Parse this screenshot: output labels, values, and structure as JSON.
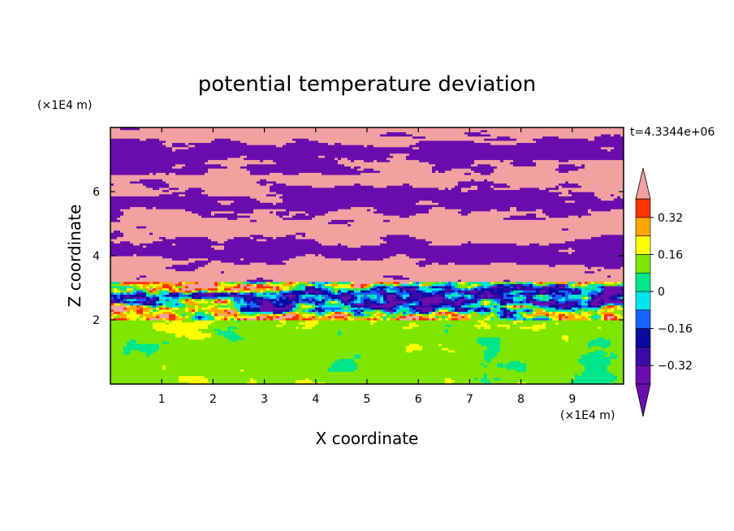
{
  "chart_data": {
    "type": "heatmap",
    "title": "potential temperature deviation",
    "xlabel": "X coordinate",
    "ylabel": "Z coordinate",
    "x_unit": "(×1E4 m)",
    "y_unit": "(×1E4 m)",
    "time_label": "t=4.3344e+06",
    "xlim": [
      0,
      10
    ],
    "ylim": [
      0,
      8
    ],
    "x_ticks": [
      1,
      2,
      3,
      4,
      5,
      6,
      7,
      8,
      9
    ],
    "y_ticks": [
      2,
      4,
      6
    ],
    "colorbar": {
      "levels": [
        -0.4,
        -0.32,
        -0.24,
        -0.16,
        -0.08,
        0,
        0.08,
        0.16,
        0.24,
        0.32,
        0.4
      ],
      "tick_values": [
        -0.32,
        -0.16,
        0,
        0.16,
        0.32
      ],
      "tick_labels": [
        "−0.32",
        "−0.16",
        "0",
        "0.16",
        "0.32"
      ],
      "colors": [
        "#6a0dad",
        "#3b0aa8",
        "#0a0aa0",
        "#1464ff",
        "#00e5ee",
        "#00e68a",
        "#7fe600",
        "#ffff00",
        "#ffa500",
        "#ff3300",
        "#f2a0a0"
      ],
      "extend": "both"
    },
    "regions": {
      "boundary_layer_top": 2.0,
      "mixing_layer_top": 3.2,
      "boundary_layer_dominant": "near 0 (green shades)",
      "upper_layer_dominant": "alternating -0.4 (purple) and +0.4 (pink) bands"
    }
  }
}
